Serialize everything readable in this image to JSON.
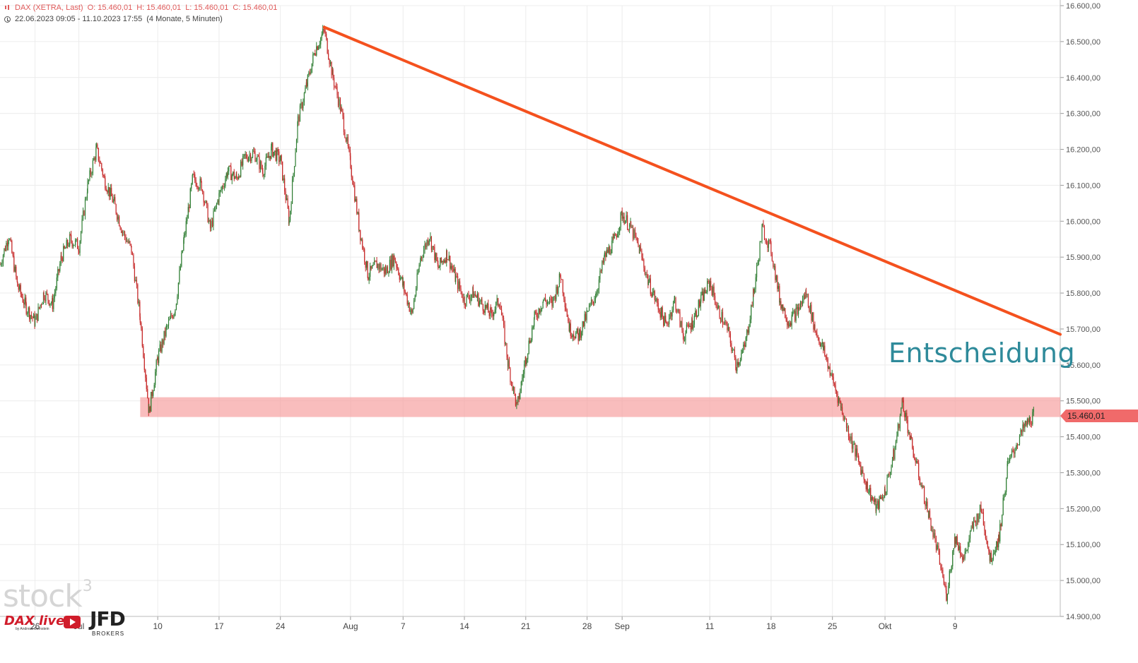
{
  "header": {
    "line1_name": "DAX (XETRA, Last)",
    "line1_o": "O: 15.460,01",
    "line1_h": "H: 15.460,01",
    "line1_l": "L: 15.460,01",
    "line1_c": "C: 15.460,01",
    "line2": "22.06.2023 09:05 - 11.10.2023 17:55",
    "line2_range": "(4 Monate, 5 Minuten)",
    "ticker_icon": "candlestick-icon",
    "clock_icon": "clock-icon"
  },
  "annotation": "Entscheidung",
  "last_price_label": "15.460,01",
  "logos": {
    "stock": "stock",
    "stock_sup": "3",
    "dax": "DAX live",
    "dax_sub": "by Andreas Bernstein",
    "jfd": "JFD",
    "jfd_sub": "BROKERS"
  },
  "colors": {
    "up_candle": "#2e7d32",
    "down_candle": "#c62828",
    "trendline": "#f4511e",
    "support_zone": "#f7a1a1",
    "annotation": "#2e8a9a",
    "price_tag": "#f06a6a"
  },
  "chart_data": {
    "type": "line",
    "instrument": "DAX",
    "x_range": [
      "22.06.2023",
      "11.10.2023"
    ],
    "x_ticks": [
      {
        "label": "26",
        "day": 4
      },
      {
        "label": "Jul",
        "day": 9
      },
      {
        "label": "10",
        "day": 18
      },
      {
        "label": "17",
        "day": 25
      },
      {
        "label": "24",
        "day": 32
      },
      {
        "label": "Aug",
        "day": 40
      },
      {
        "label": "7",
        "day": 46
      },
      {
        "label": "14",
        "day": 53
      },
      {
        "label": "21",
        "day": 60
      },
      {
        "label": "28",
        "day": 67
      },
      {
        "label": "Sep",
        "day": 71
      },
      {
        "label": "11",
        "day": 81
      },
      {
        "label": "18",
        "day": 88
      },
      {
        "label": "25",
        "day": 95
      },
      {
        "label": "Okt",
        "day": 101
      },
      {
        "label": "9",
        "day": 109
      }
    ],
    "ylim": [
      14880,
      16600
    ],
    "y_ticks": [
      "14.900,00",
      "15.000,00",
      "15.100,00",
      "15.200,00",
      "15.300,00",
      "15.400,00",
      "15.500,00",
      "15.600,00",
      "15.700,00",
      "15.800,00",
      "15.900,00",
      "16.000,00",
      "16.100,00",
      "16.200,00",
      "16.300,00",
      "16.400,00",
      "16.500,00",
      "16.600,00"
    ],
    "y_tick_values": [
      14900,
      15000,
      15100,
      15200,
      15300,
      15400,
      15500,
      15600,
      15700,
      15800,
      15900,
      16000,
      16100,
      16200,
      16300,
      16400,
      16500,
      16600
    ],
    "grid": true,
    "series": [
      {
        "values_note": "approximate intraday path (day offset from 22.06.2023, DAX level)",
        "points": [
          [
            0,
            15880
          ],
          [
            1,
            15960
          ],
          [
            2,
            15820
          ],
          [
            3,
            15760
          ],
          [
            4,
            15720
          ],
          [
            5,
            15800
          ],
          [
            6,
            15770
          ],
          [
            7,
            15900
          ],
          [
            8,
            15950
          ],
          [
            9,
            15930
          ],
          [
            10,
            16100
          ],
          [
            11,
            16200
          ],
          [
            12,
            16110
          ],
          [
            13,
            16050
          ],
          [
            14,
            15970
          ],
          [
            15,
            15920
          ],
          [
            16,
            15730
          ],
          [
            17,
            15470
          ],
          [
            18,
            15620
          ],
          [
            19,
            15700
          ],
          [
            20,
            15760
          ],
          [
            21,
            15950
          ],
          [
            22,
            16120
          ],
          [
            23,
            16100
          ],
          [
            24,
            15980
          ],
          [
            25,
            16070
          ],
          [
            26,
            16140
          ],
          [
            27,
            16120
          ],
          [
            28,
            16180
          ],
          [
            29,
            16190
          ],
          [
            30,
            16140
          ],
          [
            31,
            16200
          ],
          [
            32,
            16170
          ],
          [
            33,
            16000
          ],
          [
            34,
            16280
          ],
          [
            35,
            16380
          ],
          [
            36,
            16480
          ],
          [
            37,
            16530
          ],
          [
            38,
            16400
          ],
          [
            39,
            16300
          ],
          [
            40,
            16160
          ],
          [
            41,
            15980
          ],
          [
            42,
            15850
          ],
          [
            43,
            15880
          ],
          [
            44,
            15860
          ],
          [
            45,
            15900
          ],
          [
            46,
            15820
          ],
          [
            47,
            15740
          ],
          [
            48,
            15900
          ],
          [
            49,
            15960
          ],
          [
            50,
            15870
          ],
          [
            51,
            15910
          ],
          [
            52,
            15840
          ],
          [
            53,
            15780
          ],
          [
            54,
            15800
          ],
          [
            55,
            15770
          ],
          [
            56,
            15740
          ],
          [
            57,
            15780
          ],
          [
            58,
            15600
          ],
          [
            59,
            15480
          ],
          [
            60,
            15620
          ],
          [
            61,
            15730
          ],
          [
            62,
            15780
          ],
          [
            63,
            15770
          ],
          [
            64,
            15850
          ],
          [
            65,
            15700
          ],
          [
            66,
            15680
          ],
          [
            67,
            15740
          ],
          [
            68,
            15800
          ],
          [
            69,
            15900
          ],
          [
            70,
            15940
          ],
          [
            71,
            16020
          ],
          [
            72,
            15980
          ],
          [
            73,
            15920
          ],
          [
            74,
            15830
          ],
          [
            75,
            15770
          ],
          [
            76,
            15710
          ],
          [
            77,
            15780
          ],
          [
            78,
            15680
          ],
          [
            79,
            15720
          ],
          [
            80,
            15780
          ],
          [
            81,
            15830
          ],
          [
            82,
            15750
          ],
          [
            83,
            15700
          ],
          [
            84,
            15600
          ],
          [
            85,
            15650
          ],
          [
            86,
            15800
          ],
          [
            87,
            15980
          ],
          [
            88,
            15920
          ],
          [
            89,
            15780
          ],
          [
            90,
            15720
          ],
          [
            91,
            15750
          ],
          [
            92,
            15800
          ],
          [
            93,
            15700
          ],
          [
            94,
            15640
          ],
          [
            95,
            15560
          ],
          [
            96,
            15480
          ],
          [
            97,
            15400
          ],
          [
            98,
            15330
          ],
          [
            99,
            15260
          ],
          [
            100,
            15200
          ],
          [
            101,
            15250
          ],
          [
            102,
            15350
          ],
          [
            103,
            15500
          ],
          [
            104,
            15380
          ],
          [
            105,
            15280
          ],
          [
            106,
            15180
          ],
          [
            107,
            15080
          ],
          [
            108,
            14960
          ],
          [
            109,
            15120
          ],
          [
            110,
            15060
          ],
          [
            111,
            15150
          ],
          [
            112,
            15200
          ],
          [
            113,
            15060
          ],
          [
            114,
            15120
          ],
          [
            115,
            15320
          ],
          [
            116,
            15380
          ],
          [
            117,
            15430
          ],
          [
            118,
            15460
          ]
        ]
      }
    ],
    "resistance_trendline": {
      "from": [
        37,
        16540
      ],
      "to": [
        121,
        15685
      ]
    },
    "support_zone": {
      "from_day": 16,
      "to_day": 121,
      "low": 15455,
      "high": 15510
    },
    "last_price": 15460.01
  }
}
